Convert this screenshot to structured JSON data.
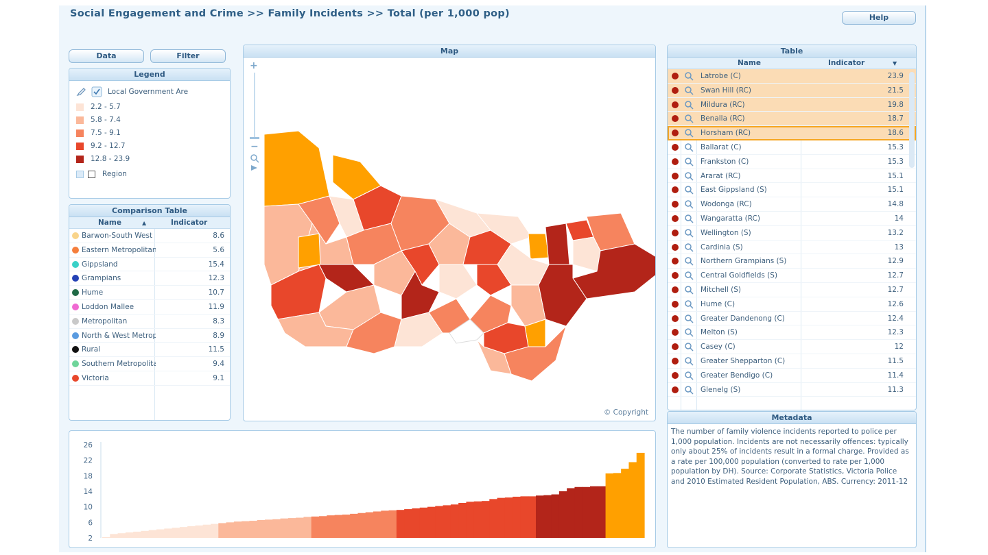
{
  "header": {
    "title": "Social Engagement and Crime >> Family Incidents >>  Total (per 1,000 pop)",
    "help_label": "Help"
  },
  "toolbar": {
    "data_label": "Data",
    "filter_label": "Filter"
  },
  "legend": {
    "title": "Legend",
    "layer_label": "Local Government Are",
    "region_label": "Region",
    "classes": [
      {
        "label": "2.2 - 5.7",
        "color": "#fde4d6"
      },
      {
        "label": "5.8 - 7.4",
        "color": "#fbb89a"
      },
      {
        "label": "7.5 - 9.1",
        "color": "#f6845e"
      },
      {
        "label": "9.2 - 12.7",
        "color": "#e8472b"
      },
      {
        "label": "12.8 - 23.9",
        "color": "#b3251a"
      }
    ]
  },
  "comparison": {
    "title": "Comparison Table",
    "col_name": "Name",
    "col_indicator": "Indicator",
    "rows": [
      {
        "name": "Barwon-South West",
        "value": "8.6",
        "color": "#f9d48a"
      },
      {
        "name": "Eastern Metropolitan",
        "value": "5.6",
        "color": "#f57f3d"
      },
      {
        "name": "Gippsland",
        "value": "15.4",
        "color": "#3ad1c7"
      },
      {
        "name": "Grampians",
        "value": "12.3",
        "color": "#2441b5"
      },
      {
        "name": "Hume",
        "value": "10.7",
        "color": "#1f6a46"
      },
      {
        "name": "Loddon Mallee",
        "value": "11.9",
        "color": "#f06ad2"
      },
      {
        "name": "Metropolitan",
        "value": "8.3",
        "color": "#c9c9c9"
      },
      {
        "name": "North & West Metropolitan",
        "value": "8.9",
        "color": "#5a9be0"
      },
      {
        "name": "Rural",
        "value": "11.5",
        "color": "#111111"
      },
      {
        "name": "Southern Metropolitan",
        "value": "9.4",
        "color": "#6fd59a"
      },
      {
        "name": "Victoria",
        "value": "9.1",
        "color": "#e8472b"
      }
    ]
  },
  "map": {
    "title": "Map",
    "copyright": "© Copyright"
  },
  "table": {
    "title": "Table",
    "col_name": "Name",
    "col_indicator": "Indicator",
    "rows": [
      {
        "name": "Latrobe (C)",
        "value": "23.9"
      },
      {
        "name": "Swan Hill (RC)",
        "value": "21.5"
      },
      {
        "name": "Mildura (RC)",
        "value": "19.8"
      },
      {
        "name": "Benalla (RC)",
        "value": "18.7"
      },
      {
        "name": "Horsham (RC)",
        "value": "18.6"
      },
      {
        "name": "Ballarat (C)",
        "value": "15.3"
      },
      {
        "name": "Frankston (C)",
        "value": "15.3"
      },
      {
        "name": "Ararat (RC)",
        "value": "15.1"
      },
      {
        "name": "East Gippsland (S)",
        "value": "15.1"
      },
      {
        "name": "Wodonga (RC)",
        "value": "14.8"
      },
      {
        "name": "Wangaratta (RC)",
        "value": "14"
      },
      {
        "name": "Wellington (S)",
        "value": "13.2"
      },
      {
        "name": "Cardinia (S)",
        "value": "13"
      },
      {
        "name": "Northern Grampians (S)",
        "value": "12.9"
      },
      {
        "name": "Central Goldfields (S)",
        "value": "12.7"
      },
      {
        "name": "Mitchell (S)",
        "value": "12.7"
      },
      {
        "name": "Hume (C)",
        "value": "12.6"
      },
      {
        "name": "Greater Dandenong (C)",
        "value": "12.4"
      },
      {
        "name": "Melton (S)",
        "value": "12.3"
      },
      {
        "name": "Casey (C)",
        "value": "12"
      },
      {
        "name": "Greater Shepparton (C)",
        "value": "11.5"
      },
      {
        "name": "Greater Bendigo (C)",
        "value": "11.4"
      },
      {
        "name": "Glenelg (S)",
        "value": "11.3"
      }
    ]
  },
  "metadata": {
    "title": "Metadata",
    "text": "The number of family violence incidents reported to police per 1,000 population. Incidents are not necessarily offences: typically only about 25% of incidents result in a formal charge. Provided as a rate per 100,000 population (converted to rate per 1,000 population by DH). Source: Corporate Statistics, Victoria Police and 2010 Estimated Resident Population, ABS. Currency: 2011-12"
  },
  "chart_data": {
    "type": "bar",
    "ylim": [
      2,
      26
    ],
    "y_ticks": [
      "2",
      "6",
      "10",
      "14",
      "18",
      "22",
      "26"
    ],
    "color_classes": [
      "#fde4d6",
      "#fbb89a",
      "#f6845e",
      "#e8472b",
      "#b3251a",
      "#ffa000"
    ],
    "values": [
      2.2,
      3.0,
      3.2,
      3.4,
      3.6,
      3.8,
      4.0,
      4.2,
      4.4,
      4.6,
      4.8,
      5.0,
      5.2,
      5.4,
      5.6,
      5.8,
      6.0,
      6.2,
      6.3,
      6.4,
      6.6,
      6.7,
      6.8,
      7.0,
      7.1,
      7.2,
      7.4,
      7.5,
      7.6,
      7.8,
      7.9,
      8.0,
      8.2,
      8.4,
      8.6,
      8.8,
      9.0,
      9.1,
      9.2,
      9.4,
      9.6,
      9.8,
      10.0,
      10.2,
      10.4,
      10.6,
      11.0,
      11.3,
      11.4,
      11.5,
      12.0,
      12.3,
      12.4,
      12.6,
      12.7,
      12.7,
      12.9,
      13.0,
      13.2,
      14.0,
      14.8,
      15.1,
      15.1,
      15.3,
      15.3,
      18.6,
      18.7,
      19.8,
      21.5,
      23.9
    ]
  }
}
